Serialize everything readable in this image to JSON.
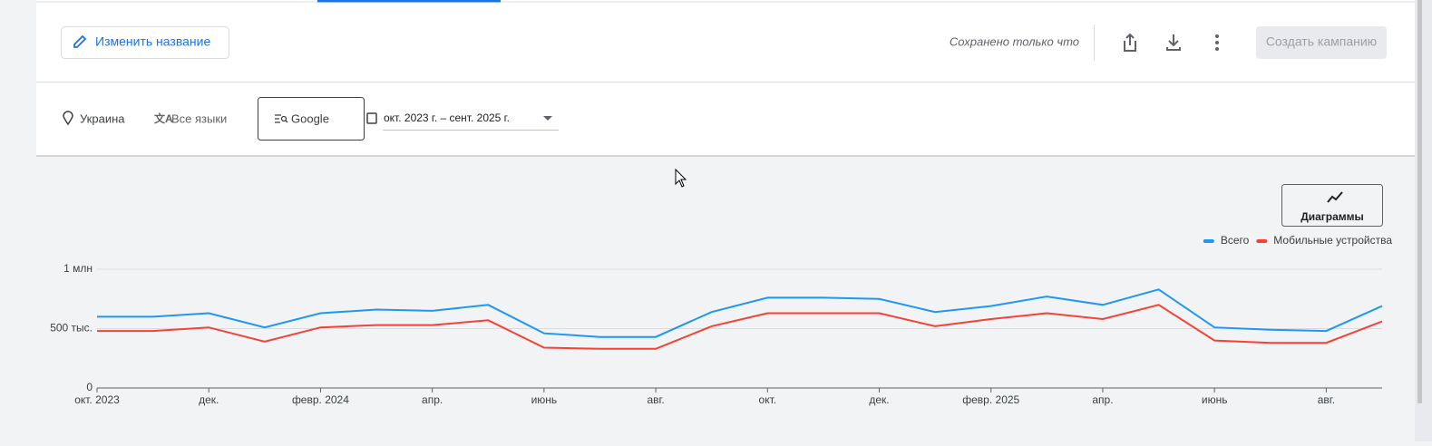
{
  "toolbar": {
    "rename_button": "Изменить название",
    "saved_status": "Сохранено только что",
    "create_campaign": "Создать кампанию"
  },
  "filters": {
    "location": "Украина",
    "language": "Все языки",
    "network": "Google",
    "date_range": "окт. 2023 г. – сент. 2025 г."
  },
  "chart_toggle": "Диаграммы",
  "chart_data": {
    "type": "line",
    "categories": [
      "окт. 2023",
      null,
      "дек.",
      null,
      "февр. 2024",
      null,
      "апр.",
      null,
      "июнь",
      null,
      "авг.",
      null,
      "окт.",
      null,
      "дек.",
      null,
      "февр. 2025",
      null,
      "апр.",
      null,
      "июнь",
      null,
      "авг.",
      null
    ],
    "series": [
      {
        "name": "Всего",
        "color": "#2196f3",
        "values": [
          600000,
          600000,
          630000,
          510000,
          630000,
          660000,
          650000,
          700000,
          460000,
          430000,
          430000,
          640000,
          760000,
          760000,
          750000,
          640000,
          690000,
          770000,
          700000,
          830000,
          510000,
          490000,
          480000,
          690000
        ]
      },
      {
        "name": "Мобильные устройства",
        "color": "#f44336",
        "values": [
          480000,
          480000,
          510000,
          390000,
          510000,
          530000,
          530000,
          570000,
          340000,
          330000,
          330000,
          520000,
          630000,
          630000,
          630000,
          520000,
          580000,
          630000,
          580000,
          700000,
          400000,
          380000,
          380000,
          560000
        ]
      }
    ],
    "ylim": [
      0,
      1000000
    ],
    "yticks": [
      0,
      {
        "value": 500000,
        "label": "500 тыс."
      },
      {
        "value": 1000000,
        "label": "1 млн"
      }
    ],
    "grid": true,
    "legend": "top-right"
  }
}
